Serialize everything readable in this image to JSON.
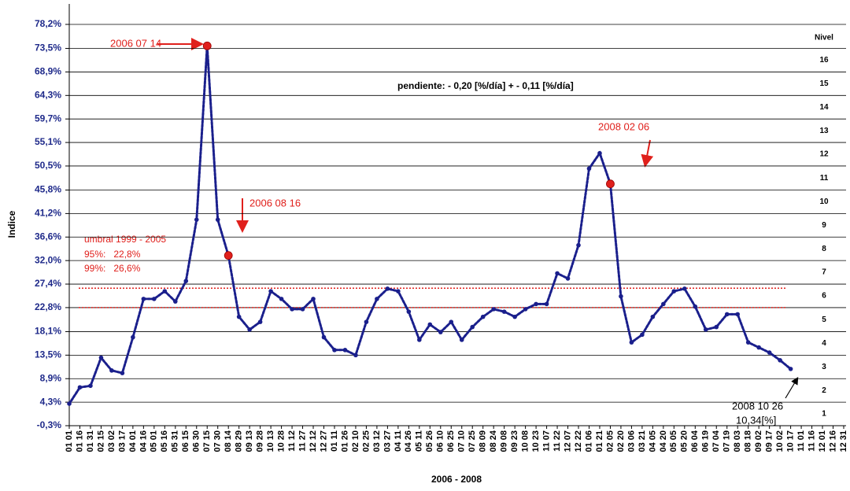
{
  "chart_data": {
    "type": "line",
    "y_label": "Indice",
    "x_label": "2006 - 2008",
    "categories": [
      "01 01",
      "01 16",
      "01 31",
      "02 15",
      "03 02",
      "03 17",
      "04 01",
      "04 16",
      "05 01",
      "05 16",
      "05 31",
      "06 15",
      "06 30",
      "07 15",
      "07 30",
      "08 14",
      "08 29",
      "09 13",
      "09 28",
      "10 13",
      "10 28",
      "11 12",
      "11 27",
      "12 12",
      "12 27",
      "01 11",
      "01 26",
      "02 10",
      "02 25",
      "03 12",
      "03 27",
      "04 11",
      "04 26",
      "05 11",
      "05 26",
      "06 10",
      "06 25",
      "07 10",
      "07 25",
      "08 09",
      "08 24",
      "09 08",
      "09 23",
      "10 08",
      "10 23",
      "11 07",
      "11 22",
      "12 07",
      "12 22",
      "01 06",
      "01 21",
      "02 05",
      "02 20",
      "03 06",
      "03 21",
      "04 05",
      "04 20",
      "05 05",
      "05 20",
      "06 04",
      "06 19",
      "07 04",
      "07 19",
      "08 03",
      "08 18",
      "09 02",
      "09 17",
      "10 02",
      "10 17",
      "11 01",
      "11 16",
      "12 01",
      "12 16",
      "12 31"
    ],
    "series": [
      {
        "color": "#1a1f8c",
        "values": [
          4,
          7.2,
          7.5,
          13,
          10.5,
          10,
          17,
          24.5,
          24.5,
          26,
          24,
          28,
          40,
          74,
          40,
          33,
          21,
          18.5,
          20,
          26,
          24.5,
          22.5,
          22.5,
          24.5,
          17,
          14.5,
          14.5,
          13.5,
          20,
          24.5,
          26.5,
          26,
          22,
          16.5,
          19.5,
          18,
          20,
          16.5,
          19,
          21,
          22.5,
          22,
          21,
          22.5,
          23.5,
          23.5,
          29.5,
          28.5,
          35,
          50,
          53,
          47,
          25,
          16,
          17.5,
          21,
          23.5,
          26,
          26.5,
          23,
          18.5,
          19,
          21.5,
          21.5,
          16,
          15,
          14,
          12.5,
          10.8,
          null,
          null,
          null,
          null,
          null
        ]
      }
    ],
    "ylim": [
      -0.3,
      78.2
    ],
    "yticks": [
      {
        "value": -0.3,
        "label": "-0,3%"
      },
      {
        "value": 4.3,
        "label": "4,3%"
      },
      {
        "value": 8.9,
        "label": "8,9%"
      },
      {
        "value": 13.5,
        "label": "13,5%"
      },
      {
        "value": 18.1,
        "label": "18,1%"
      },
      {
        "value": 22.8,
        "label": "22,8%"
      },
      {
        "value": 27.4,
        "label": "27,4%"
      },
      {
        "value": 32.0,
        "label": "32,0%"
      },
      {
        "value": 36.6,
        "label": "36,6%"
      },
      {
        "value": 41.2,
        "label": "41,2%"
      },
      {
        "value": 45.8,
        "label": "45,8%"
      },
      {
        "value": 50.5,
        "label": "50,5%"
      },
      {
        "value": 55.1,
        "label": "55,1%"
      },
      {
        "value": 59.7,
        "label": "59,7%"
      },
      {
        "value": 64.3,
        "label": "64,3%"
      },
      {
        "value": 68.9,
        "label": "68,9%"
      },
      {
        "value": 73.5,
        "label": "73,5%"
      },
      {
        "value": 78.2,
        "label": "78,2%"
      }
    ],
    "grid": true,
    "reference_lines": [
      {
        "value": 22.8,
        "label": "95%:   22,8%",
        "color": "#e0201c"
      },
      {
        "value": 26.6,
        "label": "99%:   26,6%",
        "color": "#e0201c"
      }
    ],
    "reference_title": "umbral 1999 - 2005",
    "levels_title": "Nivel",
    "levels": [
      1,
      2,
      3,
      4,
      5,
      6,
      7,
      8,
      9,
      10,
      11,
      12,
      13,
      14,
      15,
      16
    ],
    "slope_note": "pendiente:   - 0,20 [%/día]  + - 0,11 [%/día]",
    "annotations": [
      "2006 07 14",
      "2006 08 16",
      "2008 02 06",
      "2008 10 26",
      "10,34[%]"
    ]
  }
}
